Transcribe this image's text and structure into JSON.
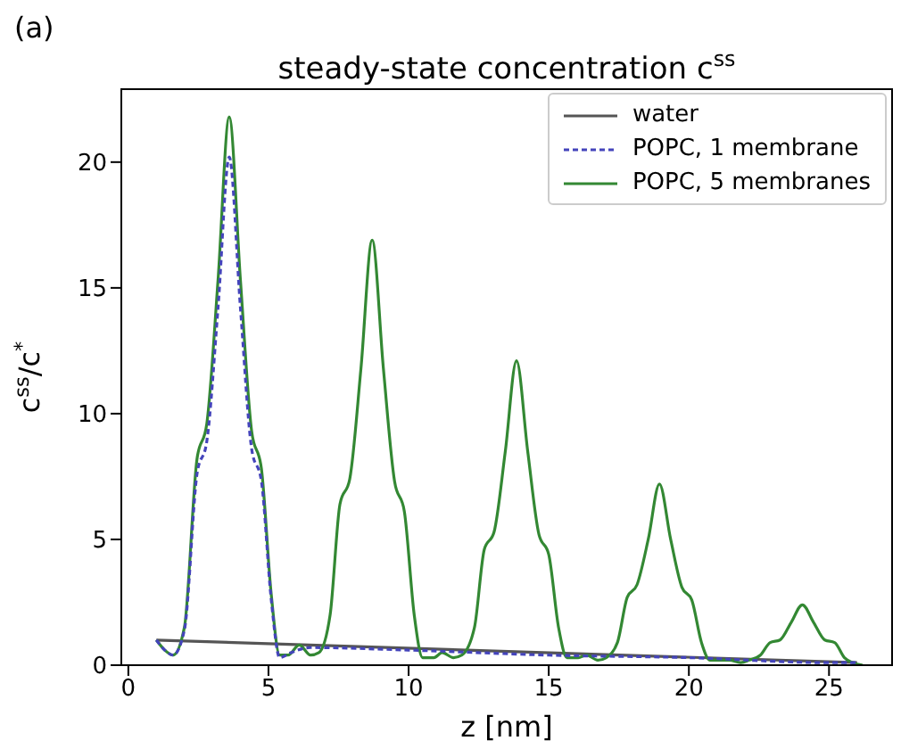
{
  "chart_data": {
    "type": "line",
    "title": "steady-state concentration c$^{ss}$",
    "xlabel": "z [nm]",
    "ylabel": "c$^{ss}$/c$^{*}$",
    "annotations": [
      "(a)"
    ],
    "xlim": [
      -0.25,
      27.25
    ],
    "xticks": [
      0,
      5,
      10,
      15,
      20,
      25
    ],
    "ylim": [
      0,
      22.9
    ],
    "yticks": [
      0,
      5,
      10,
      15,
      20
    ],
    "grid": false,
    "legend": "top right",
    "marker": "none",
    "series": [
      {
        "name": "water",
        "color": "#555555",
        "line_style": "solid",
        "x": [
          1.0,
          26.0
        ],
        "values": [
          1.0,
          0.1
        ]
      },
      {
        "name": "POPC, 1 membrane",
        "color": "#4444bb",
        "line_style": "dashed",
        "x": [
          1.0,
          1.3,
          1.6,
          2.0,
          2.45,
          2.8,
          3.2,
          3.6,
          4.0,
          4.4,
          4.75,
          5.1,
          5.4,
          5.8,
          6.5,
          10,
          15,
          20,
          25,
          26
        ],
        "values": [
          1.0,
          0.6,
          0.4,
          1.4,
          7.6,
          8.9,
          14.2,
          20.2,
          14.2,
          8.6,
          7.3,
          2.6,
          0.3,
          0.5,
          0.7,
          0.6,
          0.4,
          0.3,
          0.1,
          0.1
        ]
      },
      {
        "name": "POPC, 5 membranes",
        "color": "#338833",
        "line_style": "solid",
        "x": [
          1.0,
          1.3,
          1.6,
          2.0,
          2.45,
          2.8,
          3.2,
          3.6,
          4.0,
          4.4,
          4.75,
          5.1,
          5.4,
          5.7,
          6.1,
          6.5,
          6.8,
          7.2,
          7.55,
          7.9,
          8.3,
          8.7,
          9.1,
          9.5,
          9.85,
          10.2,
          10.5,
          10.9,
          11.2,
          11.6,
          11.9,
          12.35,
          12.7,
          13.05,
          13.45,
          13.85,
          14.25,
          14.65,
          15.0,
          15.35,
          15.65,
          16.05,
          16.35,
          16.75,
          17.05,
          17.45,
          17.8,
          18.15,
          18.55,
          18.95,
          19.35,
          19.75,
          20.1,
          20.45,
          20.75,
          21.15,
          21.45,
          21.85,
          22.15,
          22.55,
          22.9,
          23.25,
          23.65,
          24.05,
          24.45,
          24.85,
          25.2,
          25.55,
          25.85,
          26.2
        ],
        "values": [
          1.0,
          0.6,
          0.4,
          1.5,
          8.2,
          9.6,
          15.3,
          21.8,
          15.3,
          9.3,
          7.8,
          2.8,
          0.4,
          0.4,
          0.8,
          0.4,
          0.5,
          2.0,
          6.4,
          7.4,
          11.8,
          16.9,
          11.8,
          7.3,
          6.1,
          2.0,
          0.3,
          0.3,
          0.5,
          0.3,
          0.4,
          1.5,
          4.6,
          5.3,
          8.5,
          12.1,
          8.5,
          5.2,
          4.4,
          1.5,
          0.3,
          0.3,
          0.4,
          0.2,
          0.3,
          0.9,
          2.7,
          3.2,
          5.0,
          7.2,
          5.0,
          3.1,
          2.6,
          0.9,
          0.2,
          0.2,
          0.2,
          0.1,
          0.2,
          0.4,
          0.9,
          1.0,
          1.7,
          2.4,
          1.7,
          1.0,
          0.9,
          0.3,
          0.1,
          0.0
        ]
      }
    ]
  }
}
